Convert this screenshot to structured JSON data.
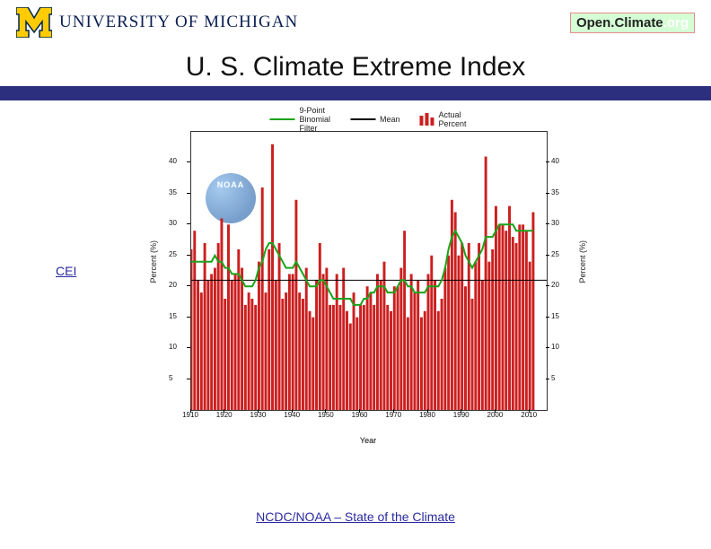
{
  "header": {
    "umich_text_1": "U",
    "umich_text_2": "NIVERSITY OF",
    "umich_text_3": " M",
    "umich_text_4": "ICHIGAN",
    "openclimate_open": "Open.",
    "openclimate_climate": "Climate",
    "openclimate_org": ".org",
    "block_m_fill": "#ffcb05",
    "block_m_stroke": "#00274c"
  },
  "title": "U. S. Climate Extreme Index",
  "purple_bar_color": "#2c2f7e",
  "cei_link": "CEI",
  "footer_link": "NCDC/NOAA – State of the Climate",
  "noaa_label": "NOAA",
  "legend": {
    "filter": "9-Point\nBinomial\nFilter",
    "filter_color": "#1aa31a",
    "mean": "Mean",
    "mean_color": "#000000",
    "actual": "Actual\nPercent",
    "bar_color": "#cc1f1f"
  },
  "chart": {
    "type": "bar",
    "bar_color": "#cc1f1f",
    "filter_color": "#1aa31a",
    "mean_color": "#000000",
    "mean_value": 21,
    "background_color": "#ffffff",
    "ylim": [
      0,
      45
    ],
    "yticks": [
      5,
      10,
      15,
      20,
      25,
      30,
      35,
      40
    ],
    "yaxis_label": "Percent (%)",
    "xaxis_label": "Year",
    "xlim": [
      1910,
      2015
    ],
    "xticks": [
      1910,
      1920,
      1930,
      1940,
      1950,
      1960,
      1970,
      1980,
      1990,
      2000,
      2010
    ],
    "font_size_axis": 9,
    "font_size_tick": 8,
    "years_start": 1910,
    "values": [
      26,
      29,
      21,
      19,
      27,
      21,
      22,
      23,
      27,
      31,
      18,
      30,
      21,
      22,
      26,
      23,
      17,
      19,
      18,
      17,
      24,
      36,
      19,
      26,
      43,
      21,
      27,
      18,
      19,
      22,
      22,
      34,
      19,
      18,
      23,
      16,
      15,
      21,
      27,
      22,
      23,
      17,
      17,
      22,
      17,
      23,
      16,
      14,
      19,
      15,
      17,
      17,
      20,
      19,
      17,
      22,
      21,
      24,
      17,
      16,
      20,
      20,
      23,
      29,
      15,
      22,
      19,
      21,
      15,
      16,
      22,
      25,
      21,
      16,
      18,
      23,
      25,
      34,
      32,
      25,
      27,
      20,
      27,
      18,
      24,
      27,
      21,
      41,
      24,
      26,
      33,
      30,
      30,
      29,
      33,
      28,
      27,
      30,
      30,
      29,
      24,
      32
    ],
    "filter_values": [
      24,
      24,
      24,
      24,
      24,
      24,
      24,
      25,
      24,
      24,
      23,
      23,
      22,
      22,
      22,
      21,
      20,
      20,
      20,
      21,
      23,
      24,
      26,
      27,
      27,
      26,
      25,
      24,
      23,
      23,
      23,
      24,
      23,
      22,
      21,
      20,
      20,
      20,
      21,
      21,
      20,
      19,
      18,
      18,
      18,
      18,
      18,
      18,
      17,
      17,
      17,
      18,
      18,
      19,
      19,
      20,
      20,
      20,
      19,
      19,
      19,
      20,
      21,
      21,
      20,
      20,
      19,
      19,
      19,
      19,
      20,
      20,
      20,
      20,
      21,
      23,
      26,
      28,
      29,
      28,
      27,
      25,
      24,
      23,
      24,
      25,
      26,
      28,
      28,
      28,
      29,
      30,
      30,
      30,
      30,
      30,
      29,
      29,
      29,
      29,
      29,
      29
    ]
  }
}
